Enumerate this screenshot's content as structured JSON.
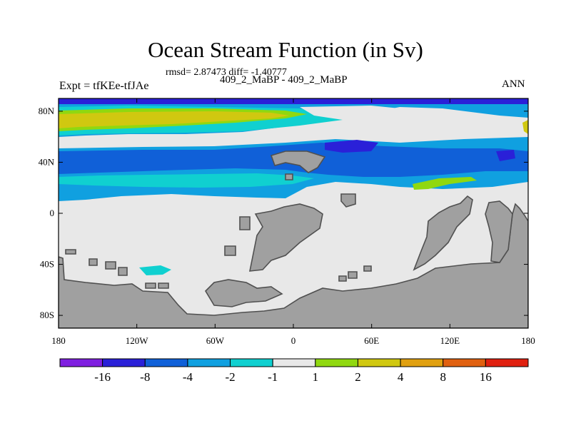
{
  "title": "Ocean Stream Function (in Sv)",
  "subtitle": "rmsd= 2.87473 diff= -1.40777",
  "label_left": "Expt = tfKEe-tfJAe",
  "label_center": "409_2_MaBP - 409_2_MaBP",
  "label_right": "ANN",
  "colors": {
    "land": "#a0a0a0",
    "land_edge": "#505050",
    "purple": "#7f1fe0",
    "dark_blue": "#2a20d8",
    "blue": "#1060d8",
    "mid_blue": "#10a0e0",
    "cyan": "#10d0d0",
    "light_gray": "#e8e8e8",
    "green": "#90d810",
    "yellow": "#d0c810",
    "orange_yellow": "#e0a010",
    "orange": "#e06010",
    "red": "#e02010"
  },
  "chart_data": {
    "type": "heatmap",
    "title": "Ocean Stream Function (in Sv)",
    "xlabel": "",
    "ylabel": "",
    "xlim": [
      -180,
      180
    ],
    "ylim": [
      -90,
      90
    ],
    "x_ticks": [
      {
        "value": -180,
        "label": "180"
      },
      {
        "value": -120,
        "label": "120W"
      },
      {
        "value": -60,
        "label": "60W"
      },
      {
        "value": 0,
        "label": "0"
      },
      {
        "value": 60,
        "label": "60E"
      },
      {
        "value": 120,
        "label": "120E"
      },
      {
        "value": 180,
        "label": "180"
      }
    ],
    "y_ticks": [
      {
        "value": 80,
        "label": "80N"
      },
      {
        "value": 40,
        "label": "40N"
      },
      {
        "value": 0,
        "label": "0"
      },
      {
        "value": -40,
        "label": "40S"
      },
      {
        "value": -80,
        "label": "80S"
      }
    ],
    "colorbar": {
      "colors": [
        "#7f1fe0",
        "#2a20d8",
        "#1060d8",
        "#10a0e0",
        "#10d0d0",
        "#e8e8e8",
        "#90d810",
        "#d0c810",
        "#e0a010",
        "#e06010",
        "#e02010"
      ],
      "boundary_labels": [
        "-16",
        "-8",
        "-4",
        "-2",
        "-1",
        "1",
        "2",
        "4",
        "8",
        "16"
      ]
    },
    "regions": [
      {
        "name": "arctic band",
        "value_range": [
          -16,
          -8
        ],
        "lat": [
          84,
          90
        ],
        "lon": [
          -180,
          180
        ]
      },
      {
        "name": "north high-latitude positive band",
        "value_range": [
          2,
          4
        ],
        "lat": [
          60,
          78
        ],
        "lon": [
          -180,
          0
        ]
      },
      {
        "name": "north-west pacific negative core",
        "value_range": [
          -16,
          -8
        ],
        "lat": [
          42,
          50
        ],
        "lon": [
          20,
          70
        ]
      },
      {
        "name": "mid-latitude negative band",
        "value_range": [
          -4,
          -2
        ],
        "lat": [
          18,
          50
        ],
        "lon": [
          -180,
          180
        ]
      },
      {
        "name": "tropical pacific positive patch",
        "value_range": [
          1,
          2
        ],
        "lat": [
          18,
          24
        ],
        "lon": [
          95,
          125
        ]
      },
      {
        "name": "southern ocean weak negative",
        "value_range": [
          -2,
          -1
        ],
        "lat": [
          -45,
          -40
        ],
        "lon": [
          -125,
          -110
        ]
      }
    ]
  }
}
